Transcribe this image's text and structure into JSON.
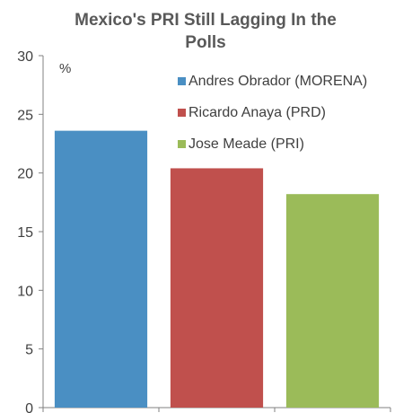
{
  "chart_data": {
    "type": "bar",
    "title_lines": [
      "Mexico's PRI Still Lagging In the",
      "Polls"
    ],
    "unit_label": "%",
    "categories": [
      "Andres Obrador (MORENA)",
      "Ricardo Anaya (PRD)",
      "Jose Meade (PRI)"
    ],
    "values": [
      23.6,
      20.4,
      18.2
    ],
    "colors": [
      "#4a8fc3",
      "#c0504d",
      "#9bbb59"
    ],
    "ylim": [
      0,
      30
    ],
    "yticks": [
      "0",
      "5",
      "10",
      "15",
      "20",
      "25",
      "30"
    ],
    "legend_position": "top-right",
    "grid": false
  }
}
